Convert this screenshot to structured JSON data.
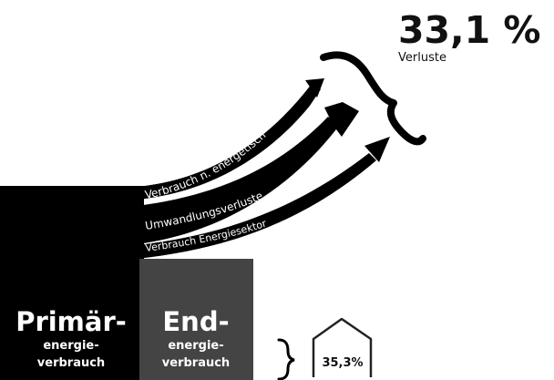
{
  "losses": {
    "value": "33,1 %",
    "label": "Verluste",
    "flows": [
      {
        "label": "Verbrauch n. energetisch"
      },
      {
        "label": "Umwandlungsverluste"
      },
      {
        "label": "Verbrauch Energiesektor"
      }
    ]
  },
  "primary": {
    "title": "Primär-",
    "line1": "energie-",
    "line2": "verbrauch"
  },
  "final": {
    "title": "End-",
    "line1": "energie-",
    "line2": "verbrauch"
  },
  "house": {
    "value": "35,3%"
  },
  "colors": {
    "primary_block": "#000000",
    "final_block": "#444444",
    "text_light": "#ffffff",
    "text_dark": "#111111"
  }
}
